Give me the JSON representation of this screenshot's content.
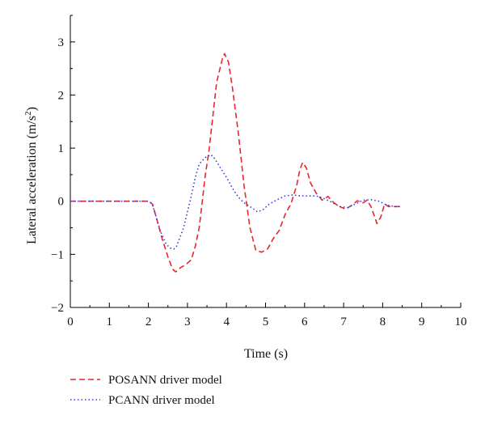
{
  "chart_data": {
    "type": "line",
    "title": "",
    "xlabel": "Time (s)",
    "ylabel_parts": {
      "main": "Lateral acceleration (m/s",
      "sup": "2",
      "close": ")"
    },
    "xlim": [
      0,
      10
    ],
    "ylim": [
      -2,
      3.5
    ],
    "xticks": [
      "0",
      "1",
      "2",
      "3",
      "4",
      "5",
      "6",
      "7",
      "8",
      "9",
      "10"
    ],
    "yticks": [
      "−2",
      "−1",
      "0",
      "1",
      "2",
      "3"
    ],
    "grid": false,
    "legend_position": "bottom-left",
    "series": [
      {
        "name": "POSANN driver model",
        "color": "#e8262b",
        "style": "dashed",
        "points": [
          [
            0,
            0
          ],
          [
            1.9,
            0
          ],
          [
            2.0,
            0
          ],
          [
            2.1,
            -0.05
          ],
          [
            2.2,
            -0.3
          ],
          [
            2.35,
            -0.7
          ],
          [
            2.5,
            -1.05
          ],
          [
            2.62,
            -1.28
          ],
          [
            2.7,
            -1.33
          ],
          [
            2.82,
            -1.25
          ],
          [
            2.95,
            -1.2
          ],
          [
            3.1,
            -1.1
          ],
          [
            3.2,
            -0.85
          ],
          [
            3.3,
            -0.5
          ],
          [
            3.38,
            0.0
          ],
          [
            3.45,
            0.45
          ],
          [
            3.55,
            0.95
          ],
          [
            3.65,
            1.6
          ],
          [
            3.75,
            2.25
          ],
          [
            3.85,
            2.55
          ],
          [
            3.9,
            2.7
          ],
          [
            3.95,
            2.78
          ],
          [
            4.05,
            2.62
          ],
          [
            4.15,
            2.15
          ],
          [
            4.3,
            1.3
          ],
          [
            4.45,
            0.3
          ],
          [
            4.6,
            -0.5
          ],
          [
            4.75,
            -0.92
          ],
          [
            4.9,
            -0.96
          ],
          [
            5.05,
            -0.9
          ],
          [
            5.2,
            -0.7
          ],
          [
            5.35,
            -0.55
          ],
          [
            5.5,
            -0.25
          ],
          [
            5.65,
            -0.05
          ],
          [
            5.8,
            0.3
          ],
          [
            5.88,
            0.6
          ],
          [
            5.95,
            0.73
          ],
          [
            6.05,
            0.62
          ],
          [
            6.15,
            0.35
          ],
          [
            6.3,
            0.15
          ],
          [
            6.45,
            0.02
          ],
          [
            6.6,
            0.09
          ],
          [
            6.75,
            -0.03
          ],
          [
            6.9,
            -0.1
          ],
          [
            7.05,
            -0.15
          ],
          [
            7.2,
            -0.08
          ],
          [
            7.35,
            0.01
          ],
          [
            7.5,
            -0.03
          ],
          [
            7.6,
            0.02
          ],
          [
            7.7,
            -0.1
          ],
          [
            7.8,
            -0.3
          ],
          [
            7.85,
            -0.42
          ],
          [
            7.95,
            -0.3
          ],
          [
            8.05,
            -0.05
          ],
          [
            8.15,
            -0.1
          ],
          [
            8.3,
            -0.1
          ],
          [
            8.45,
            -0.1
          ]
        ]
      },
      {
        "name": "PCANN driver model",
        "color": "#3a3ad6",
        "style": "dotted",
        "points": [
          [
            0,
            0
          ],
          [
            1.9,
            0
          ],
          [
            2.0,
            0
          ],
          [
            2.1,
            -0.05
          ],
          [
            2.2,
            -0.3
          ],
          [
            2.3,
            -0.55
          ],
          [
            2.45,
            -0.8
          ],
          [
            2.55,
            -0.88
          ],
          [
            2.65,
            -0.9
          ],
          [
            2.72,
            -0.85
          ],
          [
            2.8,
            -0.7
          ],
          [
            2.9,
            -0.5
          ],
          [
            3.0,
            -0.2
          ],
          [
            3.1,
            0.1
          ],
          [
            3.2,
            0.45
          ],
          [
            3.3,
            0.7
          ],
          [
            3.45,
            0.82
          ],
          [
            3.6,
            0.88
          ],
          [
            3.7,
            0.8
          ],
          [
            3.85,
            0.62
          ],
          [
            4.0,
            0.45
          ],
          [
            4.15,
            0.25
          ],
          [
            4.3,
            0.08
          ],
          [
            4.45,
            -0.03
          ],
          [
            4.6,
            -0.1
          ],
          [
            4.8,
            -0.2
          ],
          [
            4.95,
            -0.15
          ],
          [
            5.1,
            -0.05
          ],
          [
            5.3,
            0.03
          ],
          [
            5.5,
            0.1
          ],
          [
            5.7,
            0.12
          ],
          [
            5.9,
            0.1
          ],
          [
            6.1,
            0.1
          ],
          [
            6.3,
            0.1
          ],
          [
            6.5,
            0.05
          ],
          [
            6.7,
            -0.02
          ],
          [
            6.9,
            -0.1
          ],
          [
            7.1,
            -0.12
          ],
          [
            7.3,
            -0.05
          ],
          [
            7.5,
            0.02
          ],
          [
            7.7,
            0.03
          ],
          [
            7.9,
            0.0
          ],
          [
            8.1,
            -0.07
          ],
          [
            8.3,
            -0.1
          ],
          [
            8.45,
            -0.1
          ]
        ]
      }
    ]
  }
}
